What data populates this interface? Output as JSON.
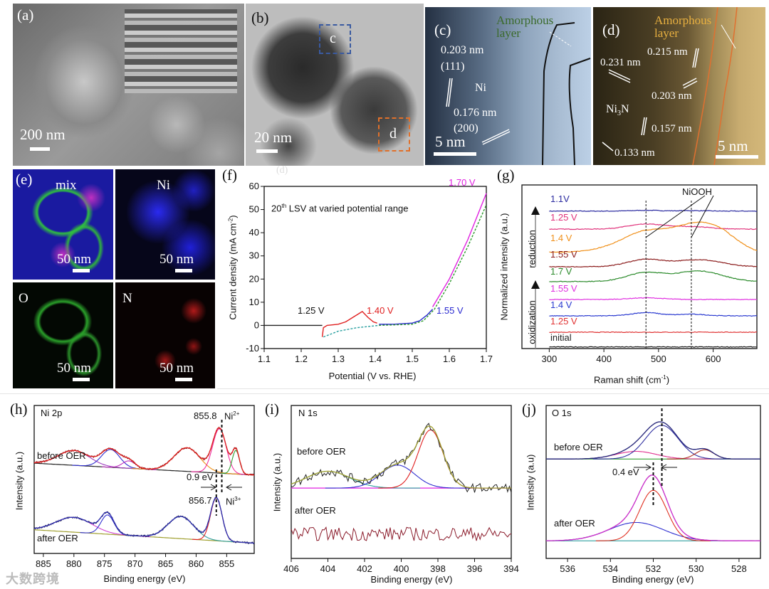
{
  "panels": {
    "a": {
      "label": "(a)",
      "scale": "200 nm"
    },
    "b": {
      "label": "(b)",
      "scale": "20 nm",
      "box_c": "c",
      "box_d": "d"
    },
    "c": {
      "label": "(c)",
      "amorphous": "Amorphous",
      "layer": "layer",
      "d1": "0.203 nm",
      "h1": "(111)",
      "phase": "Ni",
      "d2": "0.176 nm",
      "h2": "(200)",
      "scale": "5 nm"
    },
    "d": {
      "label": "(d)",
      "amorphous": "Amorphous",
      "layer": "layer",
      "d1": "0.215 nm",
      "d2": "0.231 nm",
      "d3": "0.203 nm",
      "phase_a": "Ni",
      "phase_sub": "3",
      "phase_b": "N",
      "d4": "0.157 nm",
      "d5": "0.133 nm",
      "scale": "5 nm"
    },
    "e": {
      "label": "(e)",
      "tiles": [
        {
          "name": "mix",
          "scale": "50 nm"
        },
        {
          "name": "Ni",
          "scale": "50 nm"
        },
        {
          "name": "O",
          "scale": "50 nm"
        },
        {
          "name": "N",
          "scale": "50 nm"
        }
      ]
    },
    "f": {
      "label": "(f)",
      "ghost_label": "(d)"
    },
    "g": {
      "label": "(g)"
    },
    "h": {
      "label": "(h)"
    },
    "i": {
      "label": "(i)"
    },
    "j": {
      "label": "(j)"
    }
  },
  "watermark": "大数跨境",
  "chart_data": [
    {
      "id": "f",
      "type": "line",
      "title": "20th LSV at varied potential range",
      "title_pre": "20",
      "title_sup": "th",
      "title_post": " LSV at varied potential range",
      "xlabel": "Potential (V vs. RHE)",
      "ylabel_pre": "Current density (mA cm",
      "ylabel_sup": "-2",
      "ylabel_post": ")",
      "xlim": [
        1.1,
        1.7
      ],
      "ylim": [
        -10,
        60
      ],
      "xticks": [
        "1.1",
        "1.2",
        "1.3",
        "1.4",
        "1.5",
        "1.6",
        "1.7"
      ],
      "yticks": [
        "-10",
        "0",
        "10",
        "20",
        "30",
        "40",
        "50",
        "60"
      ],
      "annotations": [
        {
          "text": "1.25 V",
          "color": "#111111"
        },
        {
          "text": "1.40 V",
          "color": "#e02020"
        },
        {
          "text": "1.55 V",
          "color": "#2a2ad0"
        },
        {
          "text": "1.70 V",
          "color": "#e020e0"
        }
      ],
      "series": [
        {
          "name": "1.25 V",
          "color": "#222222",
          "dashed": false,
          "points": [
            [
              1.1,
              0
            ],
            [
              1.257,
              0
            ]
          ]
        },
        {
          "name": "1.40 V",
          "color": "#e02020",
          "dashed": false,
          "points": [
            [
              1.257,
              -5
            ],
            [
              1.26,
              -1
            ],
            [
              1.27,
              0
            ],
            [
              1.3,
              0.5
            ],
            [
              1.32,
              1.5
            ],
            [
              1.34,
              3.5
            ],
            [
              1.365,
              6
            ],
            [
              1.38,
              3.5
            ],
            [
              1.395,
              1.5
            ],
            [
              1.405,
              1
            ]
          ]
        },
        {
          "name": "1.40 V return",
          "color": "#2aa0a0",
          "dashed": true,
          "points": [
            [
              1.26,
              -5
            ],
            [
              1.3,
              -2.5
            ],
            [
              1.35,
              -1
            ],
            [
              1.41,
              0
            ]
          ]
        },
        {
          "name": "1.55 V",
          "color": "#2a2ad0",
          "dashed": false,
          "points": [
            [
              1.41,
              0.5
            ],
            [
              1.45,
              0.5
            ],
            [
              1.5,
              1
            ],
            [
              1.52,
              2
            ],
            [
              1.54,
              4.5
            ],
            [
              1.555,
              7
            ]
          ]
        },
        {
          "name": "1.70 V",
          "color": "#e020e0",
          "dashed": false,
          "points": [
            [
              1.555,
              8
            ],
            [
              1.6,
              20
            ],
            [
              1.65,
              37
            ],
            [
              1.7,
              57
            ]
          ]
        },
        {
          "name": "1.70 V return",
          "color": "#2a9a2a",
          "dashed": true,
          "points": [
            [
              1.41,
              0
            ],
            [
              1.5,
              0.5
            ],
            [
              1.53,
              2
            ],
            [
              1.56,
              7
            ],
            [
              1.6,
              18
            ],
            [
              1.65,
              34
            ],
            [
              1.7,
              52
            ]
          ]
        }
      ]
    },
    {
      "id": "g",
      "type": "line",
      "xlabel_pre": "Raman shift (cm",
      "xlabel_sup": "-1",
      "xlabel_post": ")",
      "ylabel": "Normalized intensity (a.u.)",
      "xlim": [
        250,
        680
      ],
      "ylim": [
        0,
        10
      ],
      "xticks": [
        "300",
        "400",
        "500",
        "600"
      ],
      "peak_markers": [
        477,
        560
      ],
      "peak_label": "NiOOH",
      "arrow_labels": [
        "reduction",
        "oxidization"
      ],
      "series": [
        {
          "name": "1.1V",
          "color": "#2a2aa0",
          "offset": 8.4,
          "peaks": [
            [
              477,
              0.05,
              30
            ],
            [
              560,
              0.03,
              30
            ]
          ]
        },
        {
          "name": "1.25 V",
          "color": "#e0307a",
          "offset": 7.3,
          "peaks": [
            [
              477,
              0.3,
              40
            ],
            [
              560,
              0.15,
              40
            ]
          ]
        },
        {
          "name": "1.4 V",
          "color": "#f0901a",
          "offset": 5.9,
          "peaks": [
            [
              477,
              0.9,
              50
            ],
            [
              560,
              0.9,
              45
            ],
            [
              605,
              0.8,
              45
            ]
          ]
        },
        {
          "name": "1.55 V",
          "color": "#8a1a1a",
          "offset": 5.0,
          "peaks": [
            [
              477,
              0.45,
              40
            ],
            [
              560,
              0.3,
              40
            ],
            [
              600,
              0.2,
              40
            ]
          ]
        },
        {
          "name": "1.7 V",
          "color": "#2a8a2a",
          "offset": 4.1,
          "peaks": [
            [
              477,
              0.55,
              40
            ],
            [
              560,
              0.45,
              40
            ],
            [
              600,
              0.3,
              40
            ]
          ]
        },
        {
          "name": "1.55 V",
          "color": "#e030e0",
          "offset": 3.0,
          "peaks": [
            [
              477,
              0.1,
              35
            ]
          ]
        },
        {
          "name": "1.4 V",
          "color": "#2a3ad0",
          "offset": 2.0,
          "peaks": [
            [
              477,
              0.2,
              30
            ],
            [
              560,
              0.1,
              30
            ]
          ]
        },
        {
          "name": "1.25 V",
          "color": "#e03030",
          "offset": 1.0,
          "peaks": []
        },
        {
          "name": "initial",
          "color": "#222222",
          "offset": 0.1,
          "peaks": []
        }
      ]
    },
    {
      "id": "h",
      "type": "line",
      "title": "Ni 2p",
      "xlabel": "Binding energy (eV)",
      "ylabel": "Intensity (a.u.)",
      "xlim": [
        886.5,
        850.5
      ],
      "ylim": [
        0,
        10
      ],
      "xticks": [
        "885",
        "880",
        "875",
        "870",
        "865",
        "860",
        "855"
      ],
      "annotations": {
        "peak_before": "855.8",
        "ion_before": "Ni",
        "ion_before_sup": "2+",
        "shift": "0.9 eV",
        "peak_after": "856.7",
        "ion_after": "Ni",
        "ion_after_sup": "3+"
      },
      "markers": [
        855.8,
        856.7
      ],
      "spectra": [
        {
          "name": "before OER",
          "offset_bg": [
            6.1,
            5.3
          ],
          "bg_color": "#222222",
          "raw_color": "#8a1a1a",
          "env_color": "#e02020",
          "peaks": [
            [
              880,
              1.0,
              6,
              "#a040c0"
            ],
            [
              874,
              1.2,
              3.5,
              "#3030d0"
            ],
            [
              871,
              0.5,
              2.5,
              "#c030c0"
            ],
            [
              861.5,
              1.6,
              5,
              "#f0901a"
            ],
            [
              856.2,
              3.0,
              2.6,
              "#f030a0"
            ],
            [
              853.5,
              1.6,
              1.4,
              "#30a030"
            ]
          ]
        },
        {
          "name": "after OER",
          "offset_bg": [
            1.6,
            0.7
          ],
          "bg_color": "#a0a030",
          "raw_color": "#1a1a50",
          "env_color": "#3030b0",
          "peaks": [
            [
              880,
              1.0,
              7,
              "#d040d0"
            ],
            [
              874.5,
              1.3,
              2.5,
              "#3030d0"
            ],
            [
              862.5,
              1.5,
              5,
              "#30a0a0"
            ],
            [
              856.7,
              2.9,
              2.2,
              "#e02020"
            ]
          ]
        }
      ]
    },
    {
      "id": "i",
      "type": "line",
      "title": "N 1s",
      "xlabel": "Binding energy (eV)",
      "ylabel": "Intensity (a.u.)",
      "xlim": [
        406,
        394
      ],
      "ylim": [
        0,
        10
      ],
      "xticks": [
        "406",
        "404",
        "402",
        "400",
        "398",
        "396",
        "394"
      ],
      "spectra": [
        {
          "name": "before OER",
          "baseline": 4.6,
          "bg_color": "#e020e0",
          "raw_color": "#222222",
          "env_color": "#a0a030",
          "noise": 0.6,
          "peaks": [
            [
              404,
              1.1,
              2.8,
              "#30a0a0"
            ],
            [
              400.2,
              1.5,
              2.2,
              "#3030d0"
            ],
            [
              398.4,
              3.8,
              1.6,
              "#e02020"
            ]
          ]
        },
        {
          "name": "after OER",
          "baseline": 1.6,
          "bg_color": null,
          "raw_color": "#8a1a2a",
          "env_color": null,
          "noise": 0.9,
          "peaks": []
        }
      ]
    },
    {
      "id": "j",
      "type": "line",
      "title": "O 1s",
      "xlabel": "Binding energy (eV)",
      "ylabel": "Intensity (a.u)",
      "xlim": [
        537,
        527
      ],
      "ylim": [
        0,
        10
      ],
      "xticks": [
        "536",
        "534",
        "532",
        "530",
        "528"
      ],
      "annotations": {
        "shift": "0.4 eV"
      },
      "markers": [
        531.6,
        532.0
      ],
      "spectra": [
        {
          "name": "before OER",
          "baseline": 6.5,
          "bg_color": "#30a030",
          "raw_color": "#222222",
          "env_color": "#2a2a80",
          "noise": 0.02,
          "peaks": [
            [
              532.8,
              0.5,
              2.2,
              "#e03090"
            ],
            [
              531.6,
              2.2,
              1.8,
              "#3030a0"
            ],
            [
              529.6,
              0.6,
              1.0,
              "#b03020"
            ]
          ]
        },
        {
          "name": "after OER",
          "baseline": 1.15,
          "bg_color": "#30a0a0",
          "raw_color": "#222222",
          "env_color": "#d030d0",
          "noise": 0.02,
          "peaks": [
            [
              532.8,
              1.2,
              3.0,
              "#3030d0"
            ],
            [
              532.0,
              3.3,
              1.5,
              "#e03020"
            ]
          ]
        }
      ]
    }
  ]
}
